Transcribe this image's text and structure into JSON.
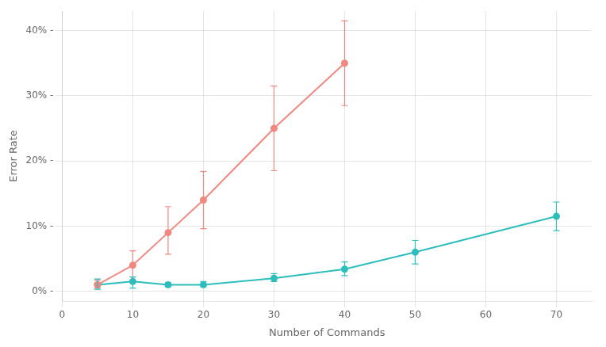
{
  "chart_data": {
    "type": "line",
    "xlabel": "Number of Commands",
    "ylabel": "Error Rate",
    "marker": "circle",
    "line_style": "solid",
    "grid": true,
    "xlim": [
      0,
      75
    ],
    "ylim": [
      -0.015,
      0.43
    ],
    "xticks": [
      0,
      10,
      20,
      30,
      40,
      50,
      60,
      70
    ],
    "yticks": [
      {
        "value": 0.0,
        "label": "0% -"
      },
      {
        "value": 0.1,
        "label": "10% -"
      },
      {
        "value": 0.2,
        "label": "20% -"
      },
      {
        "value": 0.3,
        "label": "30% -"
      },
      {
        "value": 0.4,
        "label": "40% -"
      }
    ],
    "series": [
      {
        "color": "#F08880",
        "x": [
          5,
          10,
          15,
          20,
          30,
          40
        ],
        "values": [
          0.01,
          0.04,
          0.09,
          0.14,
          0.25,
          0.35
        ],
        "yerr_low": [
          0.005,
          0.018,
          0.033,
          0.044,
          0.065,
          0.065
        ],
        "yerr_high": [
          0.007,
          0.022,
          0.04,
          0.044,
          0.065,
          0.065
        ]
      },
      {
        "color": "#2DBDBD",
        "x": [
          5,
          10,
          15,
          20,
          30,
          40,
          50,
          70
        ],
        "values": [
          0.01,
          0.015,
          0.01,
          0.01,
          0.02,
          0.034,
          0.06,
          0.115
        ],
        "yerr_low": [
          0.007,
          0.01,
          0.003,
          0.003,
          0.005,
          0.01,
          0.018,
          0.022
        ],
        "yerr_high": [
          0.009,
          0.007,
          0.003,
          0.005,
          0.007,
          0.011,
          0.018,
          0.022
        ]
      }
    ]
  }
}
